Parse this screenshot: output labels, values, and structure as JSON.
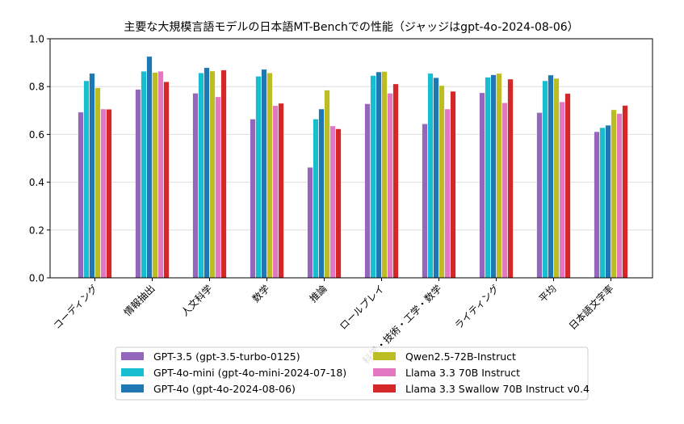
{
  "chart_data": {
    "type": "bar",
    "title": "主要な大規模言語モデルの日本語MT-Benchでの性能（ジャッジはgpt-4o-2024-08-06）",
    "xlabel": "",
    "ylabel": "",
    "ylim": [
      0,
      1.0
    ],
    "yticks": [
      "0.0",
      "0.2",
      "0.4",
      "0.6",
      "0.8",
      "1.0"
    ],
    "grid": "horizontal",
    "legend_position": "bottom-outside",
    "categories": [
      "コーディング",
      "情報抽出",
      "人文科学",
      "数学",
      "推論",
      "ロールプレイ",
      "科学・技術・工学・数学",
      "ライティング",
      "平均",
      "日本語文字率"
    ],
    "series": [
      {
        "name": "GPT-3.5 (gpt-3.5-turbo-0125)",
        "color": "#9467bd",
        "values": [
          0.693,
          0.788,
          0.772,
          0.664,
          0.462,
          0.728,
          0.644,
          0.774,
          0.691,
          0.611
        ]
      },
      {
        "name": "GPT-4o-mini (gpt-4o-mini-2024-07-18)",
        "color": "#17becf",
        "values": [
          0.824,
          0.864,
          0.857,
          0.843,
          0.664,
          0.846,
          0.855,
          0.839,
          0.824,
          0.628
        ]
      },
      {
        "name": "GPT-4o (gpt-4o-2024-08-06)",
        "color": "#1f77b4",
        "values": [
          0.855,
          0.926,
          0.879,
          0.872,
          0.706,
          0.861,
          0.837,
          0.849,
          0.848,
          0.638
        ]
      },
      {
        "name": "Qwen2.5-72B-Instruct",
        "color": "#bcbd22",
        "values": [
          0.795,
          0.859,
          0.865,
          0.857,
          0.785,
          0.863,
          0.804,
          0.855,
          0.834,
          0.703
        ]
      },
      {
        "name": "Llama 3.3 70B Instruct",
        "color": "#e377c2",
        "values": [
          0.706,
          0.864,
          0.757,
          0.72,
          0.635,
          0.772,
          0.706,
          0.732,
          0.736,
          0.687
        ]
      },
      {
        "name": "Llama 3.3 Swallow 70B Instruct v0.4",
        "color": "#d62728",
        "values": [
          0.705,
          0.82,
          0.869,
          0.73,
          0.623,
          0.811,
          0.78,
          0.831,
          0.771,
          0.721
        ]
      }
    ]
  }
}
